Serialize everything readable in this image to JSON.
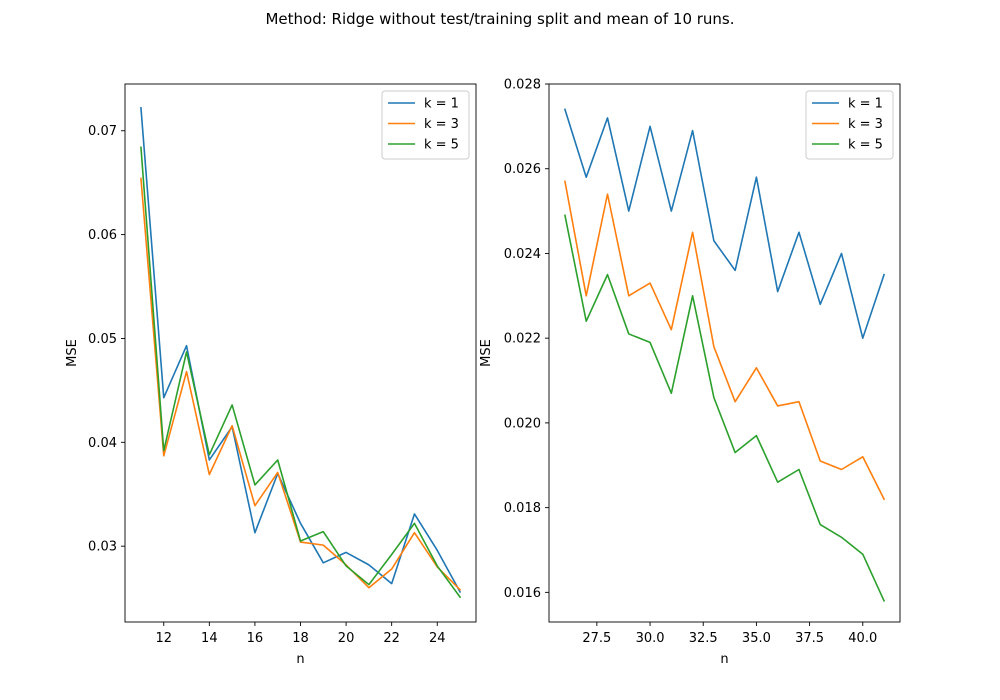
{
  "figure": {
    "suptitle": "Method: Ridge without test/training split and mean of 10 runs."
  },
  "colors": {
    "k1": "#1f77b4",
    "k3": "#ff7f0e",
    "k5": "#2ca02c"
  },
  "chart_data": [
    {
      "type": "line",
      "title": "",
      "xlabel": "n",
      "ylabel": "MSE",
      "xlim": [
        10.3,
        25.7
      ],
      "ylim": [
        0.0227,
        0.0745
      ],
      "xticks": [
        12,
        14,
        16,
        18,
        20,
        22,
        24
      ],
      "xtick_labels": [
        "12",
        "14",
        "16",
        "18",
        "20",
        "22",
        "24"
      ],
      "yticks": [
        0.03,
        0.04,
        0.05,
        0.06,
        0.07
      ],
      "ytick_labels": [
        "0.03",
        "0.04",
        "0.05",
        "0.06",
        "0.07"
      ],
      "grid": false,
      "legend": "upper right",
      "x": [
        11,
        12,
        13,
        14,
        15,
        16,
        17,
        18,
        19,
        20,
        21,
        22,
        23,
        24,
        25
      ],
      "series": [
        {
          "name": "k = 1",
          "color": "#1f77b4",
          "values": [
            0.0722,
            0.0443,
            0.0493,
            0.0383,
            0.0415,
            0.0313,
            0.037,
            0.0322,
            0.0284,
            0.0294,
            0.0282,
            0.0264,
            0.0331,
            0.0296,
            0.0256
          ]
        },
        {
          "name": "k = 3",
          "color": "#ff7f0e",
          "values": [
            0.0654,
            0.0387,
            0.0468,
            0.0369,
            0.0416,
            0.0339,
            0.0371,
            0.0304,
            0.0301,
            0.0282,
            0.026,
            0.0278,
            0.0313,
            0.028,
            0.0258
          ]
        },
        {
          "name": "k = 5",
          "color": "#2ca02c",
          "values": [
            0.0684,
            0.0392,
            0.0487,
            0.0388,
            0.0436,
            0.0359,
            0.0383,
            0.0305,
            0.0314,
            0.0281,
            0.0263,
            0.0292,
            0.0322,
            0.0281,
            0.0251
          ]
        }
      ]
    },
    {
      "type": "line",
      "title": "",
      "xlabel": "n",
      "ylabel": "MSE",
      "xlim": [
        25.25,
        41.75
      ],
      "ylim": [
        0.0153,
        0.028
      ],
      "xticks": [
        27.5,
        30.0,
        32.5,
        35.0,
        37.5,
        40.0
      ],
      "xtick_labels": [
        "27.5",
        "30.0",
        "32.5",
        "35.0",
        "37.5",
        "40.0"
      ],
      "yticks": [
        0.016,
        0.018,
        0.02,
        0.022,
        0.024,
        0.026,
        0.028
      ],
      "ytick_labels": [
        "0.016",
        "0.018",
        "0.020",
        "0.022",
        "0.024",
        "0.026",
        "0.028"
      ],
      "grid": false,
      "legend": "upper right",
      "x": [
        26,
        27,
        28,
        29,
        30,
        31,
        32,
        33,
        34,
        35,
        36,
        37,
        38,
        39,
        40,
        41
      ],
      "series": [
        {
          "name": "k = 1",
          "color": "#1f77b4",
          "values": [
            0.0274,
            0.0258,
            0.0272,
            0.025,
            0.027,
            0.025,
            0.0269,
            0.0243,
            0.0236,
            0.0258,
            0.0231,
            0.0245,
            0.0228,
            0.024,
            0.022,
            0.0235
          ]
        },
        {
          "name": "k = 3",
          "color": "#ff7f0e",
          "values": [
            0.0257,
            0.023,
            0.0254,
            0.023,
            0.0233,
            0.0222,
            0.0245,
            0.0218,
            0.0205,
            0.0213,
            0.0204,
            0.0205,
            0.0191,
            0.0189,
            0.0192,
            0.0182
          ]
        },
        {
          "name": "k = 5",
          "color": "#2ca02c",
          "values": [
            0.0249,
            0.0224,
            0.0235,
            0.0221,
            0.0219,
            0.0207,
            0.023,
            0.0206,
            0.0193,
            0.0197,
            0.0186,
            0.0189,
            0.0176,
            0.0173,
            0.0169,
            0.0158
          ]
        }
      ]
    }
  ]
}
